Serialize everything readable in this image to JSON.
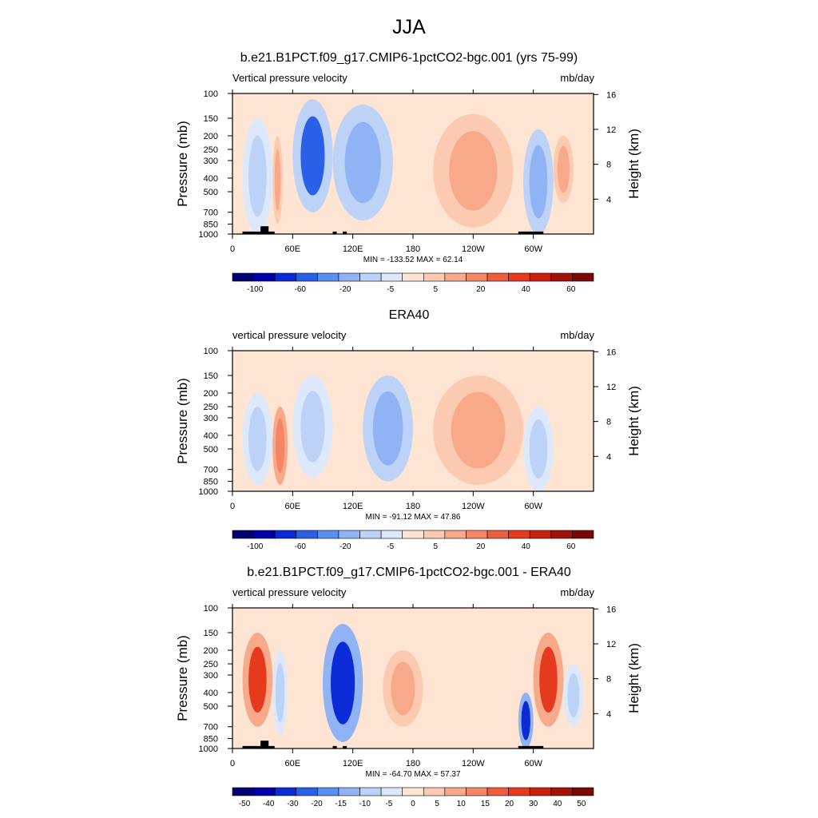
{
  "figure": {
    "title": "JJA",
    "panels": [
      {
        "title": "b.e21.B1PCT.f09_g17.CMIP6-1pctCO2-bgc.001 (yrs 75-99)",
        "left_string": "Vertical pressure velocity",
        "right_string": "mb/day",
        "min_max": "MIN = -133.52  MAX =  62.14"
      },
      {
        "title": "ERA40",
        "left_string": "vertical pressure velocity",
        "right_string": "mb/day",
        "min_max": "MIN = -91.12  MAX =  47.86"
      },
      {
        "title": "b.e21.B1PCT.f09_g17.CMIP6-1pctCO2-bgc.001 - ERA40",
        "left_string": "vertical pressure velocity",
        "right_string": "mb/day",
        "min_max": "MIN = -64.70  MAX =  57.37"
      }
    ]
  },
  "chart_data": [
    {
      "type": "heatmap",
      "title": "b.e21.B1PCT.f09_g17.CMIP6-1pctCO2-bgc.001 (yrs 75-99)",
      "ylabel": "Pressure (mb)",
      "y2label": "Height (km)",
      "units": "mb/day",
      "x_ticks": [
        "0",
        "60E",
        "120E",
        "180",
        "120W",
        "60W"
      ],
      "x_tick_values": [
        0,
        60,
        120,
        180,
        240,
        300
      ],
      "xlim": [
        0,
        360
      ],
      "y_ticks": [
        "100",
        "150",
        "200",
        "250",
        "300",
        "400",
        "500",
        "700",
        "850",
        "1000"
      ],
      "y_tick_values": [
        100,
        150,
        200,
        250,
        300,
        400,
        500,
        700,
        850,
        1000
      ],
      "y2_ticks": [
        "4",
        "8",
        "12",
        "16"
      ],
      "y2_tick_values": [
        4,
        8,
        12,
        16
      ],
      "scale": "log-pressure",
      "colorbar_labels": [
        "-100",
        "-60",
        "-20",
        "-5",
        "5",
        "20",
        "40",
        "60"
      ],
      "colorbar_colors": [
        "#03006f",
        "#0000a8",
        "#0a2bd6",
        "#2a5fe8",
        "#5a8ef0",
        "#8fb3f5",
        "#bcd2f7",
        "#dde9fb",
        "#fde4d3",
        "#fbcab0",
        "#f8a98a",
        "#f48566",
        "#ef5d3f",
        "#e63a1e",
        "#c81f0e",
        "#a11208",
        "#7a0804"
      ],
      "min": -133.52,
      "max": 62.14,
      "features": [
        {
          "lon": [
            10,
            40
          ],
          "p": [
            150,
            1000
          ],
          "value": -20
        },
        {
          "lon": [
            40,
            50
          ],
          "p": [
            200,
            850
          ],
          "value": 20
        },
        {
          "lon": [
            60,
            100
          ],
          "p": [
            110,
            700
          ],
          "value": -60
        },
        {
          "lon": [
            100,
            160
          ],
          "p": [
            120,
            800
          ],
          "value": -40
        },
        {
          "lon": [
            200,
            280
          ],
          "p": [
            140,
            900
          ],
          "value": 20
        },
        {
          "lon": [
            290,
            320
          ],
          "p": [
            180,
            1000
          ],
          "value": -40
        },
        {
          "lon": [
            320,
            340
          ],
          "p": [
            200,
            600
          ],
          "value": 20
        }
      ],
      "topography": [
        [
          10,
          42,
          960
        ],
        [
          100,
          104,
          960
        ],
        [
          110,
          114,
          960
        ],
        [
          285,
          310,
          960
        ],
        [
          28,
          36,
          880
        ]
      ]
    },
    {
      "type": "heatmap",
      "title": "ERA40",
      "ylabel": "Pressure (mb)",
      "y2label": "Height (km)",
      "units": "mb/day",
      "x_ticks": [
        "0",
        "60E",
        "120E",
        "180",
        "120W",
        "60W"
      ],
      "x_tick_values": [
        0,
        60,
        120,
        180,
        240,
        300
      ],
      "xlim": [
        0,
        360
      ],
      "y_ticks": [
        "100",
        "150",
        "200",
        "250",
        "300",
        "400",
        "500",
        "700",
        "850",
        "1000"
      ],
      "y_tick_values": [
        100,
        150,
        200,
        250,
        300,
        400,
        500,
        700,
        850,
        1000
      ],
      "y2_ticks": [
        "4",
        "8",
        "12",
        "16"
      ],
      "y2_tick_values": [
        4,
        8,
        12,
        16
      ],
      "scale": "log-pressure",
      "colorbar_labels": [
        "-100",
        "-60",
        "-20",
        "-5",
        "5",
        "20",
        "40",
        "60"
      ],
      "colorbar_colors": [
        "#03006f",
        "#0000a8",
        "#0a2bd6",
        "#2a5fe8",
        "#5a8ef0",
        "#8fb3f5",
        "#bcd2f7",
        "#dde9fb",
        "#fde4d3",
        "#fbcab0",
        "#f8a98a",
        "#f48566",
        "#ef5d3f",
        "#e63a1e",
        "#c81f0e",
        "#a11208",
        "#7a0804"
      ],
      "min": -91.12,
      "max": 47.86,
      "features": [
        {
          "lon": [
            10,
            40
          ],
          "p": [
            200,
            900
          ],
          "value": -20
        },
        {
          "lon": [
            40,
            55
          ],
          "p": [
            250,
            900
          ],
          "value": 40
        },
        {
          "lon": [
            60,
            100
          ],
          "p": [
            150,
            800
          ],
          "value": -20
        },
        {
          "lon": [
            130,
            180
          ],
          "p": [
            150,
            850
          ],
          "value": -40
        },
        {
          "lon": [
            200,
            290
          ],
          "p": [
            150,
            900
          ],
          "value": 20
        },
        {
          "lon": [
            290,
            320
          ],
          "p": [
            250,
            1000
          ],
          "value": -20
        }
      ],
      "topography": []
    },
    {
      "type": "heatmap",
      "title": "b.e21.B1PCT.f09_g17.CMIP6-1pctCO2-bgc.001 - ERA40",
      "ylabel": "Pressure (mb)",
      "y2label": "Height (km)",
      "units": "mb/day",
      "x_ticks": [
        "0",
        "60E",
        "120E",
        "180",
        "120W",
        "60W"
      ],
      "x_tick_values": [
        0,
        60,
        120,
        180,
        240,
        300
      ],
      "xlim": [
        0,
        360
      ],
      "y_ticks": [
        "100",
        "150",
        "200",
        "250",
        "300",
        "400",
        "500",
        "700",
        "850",
        "1000"
      ],
      "y_tick_values": [
        100,
        150,
        200,
        250,
        300,
        400,
        500,
        700,
        850,
        1000
      ],
      "y2_ticks": [
        "4",
        "8",
        "12",
        "16"
      ],
      "y2_tick_values": [
        4,
        8,
        12,
        16
      ],
      "scale": "log-pressure",
      "colorbar_labels": [
        "-50",
        "-40",
        "-30",
        "-20",
        "-15",
        "-10",
        "-5",
        "0",
        "5",
        "10",
        "15",
        "20",
        "30",
        "40",
        "50"
      ],
      "colorbar_colors": [
        "#03006f",
        "#0000a8",
        "#0a2bd6",
        "#2a5fe8",
        "#5a8ef0",
        "#8fb3f5",
        "#bcd2f7",
        "#dde9fb",
        "#fde4d3",
        "#fbcab0",
        "#f8a98a",
        "#f48566",
        "#ef5d3f",
        "#e63a1e",
        "#c81f0e",
        "#a11208",
        "#7a0804"
      ],
      "min": -64.7,
      "max": 57.37,
      "features": [
        {
          "lon": [
            10,
            40
          ],
          "p": [
            150,
            700
          ],
          "value": 30
        },
        {
          "lon": [
            40,
            55
          ],
          "p": [
            200,
            800
          ],
          "value": -15
        },
        {
          "lon": [
            90,
            130
          ],
          "p": [
            130,
            900
          ],
          "value": -40
        },
        {
          "lon": [
            150,
            190
          ],
          "p": [
            200,
            700
          ],
          "value": 15
        },
        {
          "lon": [
            285,
            300
          ],
          "p": [
            400,
            1000
          ],
          "value": -40
        },
        {
          "lon": [
            300,
            330
          ],
          "p": [
            150,
            700
          ],
          "value": 30
        },
        {
          "lon": [
            330,
            350
          ],
          "p": [
            250,
            700
          ],
          "value": -10
        }
      ],
      "topography": [
        [
          10,
          42,
          960
        ],
        [
          100,
          104,
          960
        ],
        [
          110,
          114,
          960
        ],
        [
          285,
          310,
          960
        ],
        [
          28,
          36,
          880
        ]
      ]
    }
  ]
}
